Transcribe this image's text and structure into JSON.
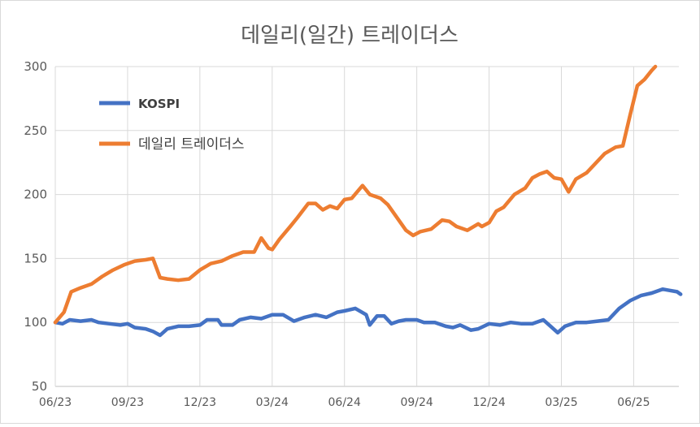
{
  "chart_data": {
    "type": "line",
    "title": "데일리(일간) 트레이더스",
    "xlabel": "",
    "ylabel": "",
    "ylim": [
      50,
      300
    ],
    "yticks": [
      50,
      100,
      150,
      200,
      250,
      300
    ],
    "xticks": [
      "06/23",
      "09/23",
      "12/23",
      "03/24",
      "06/24",
      "09/24",
      "12/24",
      "03/25",
      "06/25"
    ],
    "grid": true,
    "legend_position": "top-left",
    "colors": {
      "KOSPI": "#4472C4",
      "데일리 트레이더스": "#ED7D31"
    },
    "series": [
      {
        "name": "KOSPI",
        "color": "#4472C4",
        "points": [
          [
            0,
            100
          ],
          [
            0.1,
            99
          ],
          [
            0.2,
            102
          ],
          [
            0.35,
            101
          ],
          [
            0.5,
            102
          ],
          [
            0.6,
            100
          ],
          [
            0.75,
            99
          ],
          [
            0.9,
            98
          ],
          [
            1.0,
            99
          ],
          [
            1.1,
            96
          ],
          [
            1.25,
            95
          ],
          [
            1.35,
            93
          ],
          [
            1.45,
            90
          ],
          [
            1.55,
            95
          ],
          [
            1.7,
            97
          ],
          [
            1.85,
            97
          ],
          [
            2.0,
            98
          ],
          [
            2.1,
            102
          ],
          [
            2.25,
            102
          ],
          [
            2.3,
            98
          ],
          [
            2.45,
            98
          ],
          [
            2.55,
            102
          ],
          [
            2.7,
            104
          ],
          [
            2.85,
            103
          ],
          [
            3.0,
            106
          ],
          [
            3.15,
            106
          ],
          [
            3.3,
            101
          ],
          [
            3.45,
            104
          ],
          [
            3.6,
            106
          ],
          [
            3.75,
            104
          ],
          [
            3.9,
            108
          ],
          [
            4.0,
            109
          ],
          [
            4.15,
            111
          ],
          [
            4.3,
            106
          ],
          [
            4.35,
            98
          ],
          [
            4.45,
            105
          ],
          [
            4.55,
            105
          ],
          [
            4.65,
            99
          ],
          [
            4.75,
            101
          ],
          [
            4.85,
            102
          ],
          [
            5.0,
            102
          ],
          [
            5.1,
            100
          ],
          [
            5.25,
            100
          ],
          [
            5.4,
            97
          ],
          [
            5.5,
            96
          ],
          [
            5.6,
            98
          ],
          [
            5.75,
            94
          ],
          [
            5.85,
            95
          ],
          [
            6.0,
            99
          ],
          [
            6.15,
            98
          ],
          [
            6.3,
            100
          ],
          [
            6.45,
            99
          ],
          [
            6.6,
            99
          ],
          [
            6.75,
            102
          ],
          [
            6.85,
            97
          ],
          [
            6.95,
            92
          ],
          [
            7.05,
            97
          ],
          [
            7.2,
            100
          ],
          [
            7.35,
            100
          ],
          [
            7.5,
            101
          ],
          [
            7.65,
            102
          ],
          [
            7.8,
            111
          ],
          [
            7.95,
            117
          ],
          [
            8.1,
            121
          ],
          [
            8.25,
            123
          ],
          [
            8.4,
            126
          ],
          [
            8.5,
            125
          ],
          [
            8.6,
            124
          ],
          [
            8.65,
            122
          ]
        ]
      },
      {
        "name": "데일리 트레이더스",
        "color": "#ED7D31",
        "points": [
          [
            0,
            100
          ],
          [
            0.12,
            108
          ],
          [
            0.22,
            124
          ],
          [
            0.35,
            127
          ],
          [
            0.5,
            130
          ],
          [
            0.65,
            136
          ],
          [
            0.8,
            141
          ],
          [
            0.95,
            145
          ],
          [
            1.1,
            148
          ],
          [
            1.25,
            149
          ],
          [
            1.35,
            150
          ],
          [
            1.45,
            135
          ],
          [
            1.55,
            134
          ],
          [
            1.7,
            133
          ],
          [
            1.85,
            134
          ],
          [
            2.0,
            141
          ],
          [
            2.15,
            146
          ],
          [
            2.3,
            148
          ],
          [
            2.45,
            152
          ],
          [
            2.6,
            155
          ],
          [
            2.75,
            155
          ],
          [
            2.85,
            166
          ],
          [
            2.95,
            158
          ],
          [
            3.0,
            157
          ],
          [
            3.1,
            165
          ],
          [
            3.25,
            175
          ],
          [
            3.35,
            182
          ],
          [
            3.5,
            193
          ],
          [
            3.6,
            193
          ],
          [
            3.7,
            188
          ],
          [
            3.8,
            191
          ],
          [
            3.9,
            189
          ],
          [
            4.0,
            196
          ],
          [
            4.1,
            197
          ],
          [
            4.25,
            207
          ],
          [
            4.35,
            200
          ],
          [
            4.5,
            197
          ],
          [
            4.6,
            192
          ],
          [
            4.7,
            184
          ],
          [
            4.85,
            172
          ],
          [
            4.95,
            168
          ],
          [
            5.05,
            171
          ],
          [
            5.2,
            173
          ],
          [
            5.35,
            180
          ],
          [
            5.45,
            179
          ],
          [
            5.55,
            175
          ],
          [
            5.7,
            172
          ],
          [
            5.85,
            177
          ],
          [
            5.9,
            175
          ],
          [
            6.0,
            178
          ],
          [
            6.1,
            187
          ],
          [
            6.2,
            190
          ],
          [
            6.35,
            200
          ],
          [
            6.5,
            205
          ],
          [
            6.6,
            213
          ],
          [
            6.7,
            216
          ],
          [
            6.8,
            218
          ],
          [
            6.9,
            213
          ],
          [
            7.0,
            212
          ],
          [
            7.1,
            202
          ],
          [
            7.2,
            212
          ],
          [
            7.35,
            217
          ],
          [
            7.5,
            226
          ],
          [
            7.6,
            232
          ],
          [
            7.75,
            237
          ],
          [
            7.85,
            238
          ],
          [
            7.95,
            262
          ],
          [
            8.05,
            285
          ],
          [
            8.15,
            290
          ],
          [
            8.25,
            297
          ],
          [
            8.3,
            300
          ]
        ]
      }
    ]
  }
}
